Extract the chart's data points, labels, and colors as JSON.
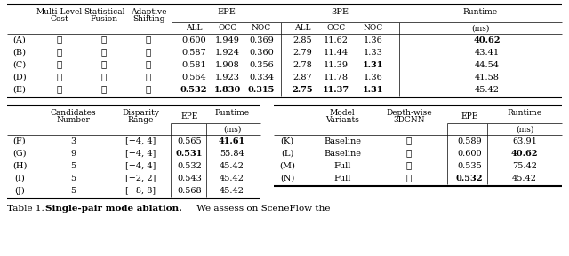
{
  "background_color": "#ffffff",
  "top_table": {
    "rows": [
      [
        "(A)",
        "✗",
        "✗",
        "✗",
        "0.600",
        "1.949",
        "0.369",
        "2.85",
        "11.62",
        "1.36",
        "40.62"
      ],
      [
        "(B)",
        "✓",
        "✗",
        "✗",
        "0.587",
        "1.924",
        "0.360",
        "2.79",
        "11.44",
        "1.33",
        "43.41"
      ],
      [
        "(C)",
        "✓",
        "✓",
        "✗",
        "0.581",
        "1.908",
        "0.356",
        "2.78",
        "11.39",
        "1.31",
        "44.54"
      ],
      [
        "(D)",
        "✗",
        "✗",
        "✓",
        "0.564",
        "1.923",
        "0.334",
        "2.87",
        "11.78",
        "1.36",
        "41.58"
      ],
      [
        "(E)",
        "✓",
        "✓",
        "✓",
        "0.532",
        "1.830",
        "0.315",
        "2.75",
        "11.37",
        "1.31",
        "45.42"
      ]
    ],
    "bold": {
      "0_10": true,
      "2_9": true,
      "4_4": true,
      "4_5": true,
      "4_6": true,
      "4_7": true,
      "4_8": true,
      "4_9": true
    }
  },
  "bottom_left_table": {
    "rows": [
      [
        "(F)",
        "3",
        "[−4, 4]",
        "0.565",
        "41.61"
      ],
      [
        "(G)",
        "9",
        "[−4, 4]",
        "0.531",
        "55.84"
      ],
      [
        "(H)",
        "5",
        "[−4, 4]",
        "0.532",
        "45.42"
      ],
      [
        "(I)",
        "5",
        "[−2, 2]",
        "0.543",
        "45.42"
      ],
      [
        "(J)",
        "5",
        "[−8, 8]",
        "0.568",
        "45.42"
      ]
    ],
    "bold": {
      "0_4": true,
      "1_3": true
    }
  },
  "bottom_right_table": {
    "rows": [
      [
        "(K)",
        "Baseline",
        "✗",
        "0.589",
        "63.91"
      ],
      [
        "(L)",
        "Baseline",
        "✓",
        "0.600",
        "40.62"
      ],
      [
        "(M)",
        "Full",
        "✗",
        "0.535",
        "75.42"
      ],
      [
        "(N)",
        "Full",
        "✓",
        "0.532",
        "45.42"
      ]
    ],
    "bold": {
      "1_4": true,
      "3_3": true
    }
  }
}
